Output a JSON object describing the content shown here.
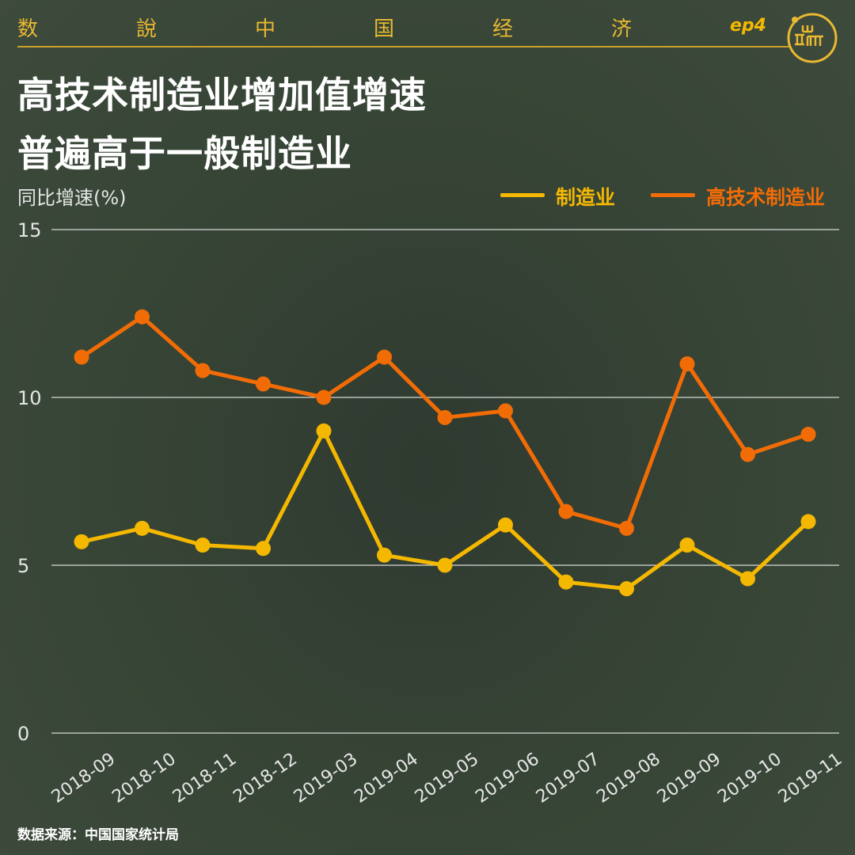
{
  "header": {
    "chars": [
      "数",
      "說",
      "中",
      "国",
      "经",
      "济"
    ],
    "episode": "ep4",
    "logo_text": "Ⅱ ш ㄇ"
  },
  "title": {
    "line1": "高技术制造业增加值增速",
    "line2": "普遍高于一般制造业"
  },
  "source": "数据来源：中国国家统计局",
  "colors": {
    "accent": "#e9b931",
    "manufacturing": "#f5b800",
    "high_tech": "#f26c06",
    "grid": "#d8d8d8"
  },
  "chart_data": {
    "type": "line",
    "title": "高技术制造业增加值增速普遍高于一般制造业",
    "ylabel": "同比增速(%)",
    "xlabel": "",
    "ylim": [
      0,
      15
    ],
    "yticks": [
      0,
      5,
      10,
      15
    ],
    "grid": true,
    "legend_position": "top-right",
    "categories": [
      "2018-09",
      "2018-10",
      "2018-11",
      "2018-12",
      "2019-03",
      "2019-04",
      "2019-05",
      "2019-06",
      "2019-07",
      "2019-08",
      "2019-09",
      "2019-10",
      "2019-11"
    ],
    "series": [
      {
        "name": "制造业",
        "color": "#f5b800",
        "values": [
          5.7,
          6.1,
          5.6,
          5.5,
          9.0,
          5.3,
          5.0,
          6.2,
          4.5,
          4.3,
          5.6,
          4.6,
          6.3
        ]
      },
      {
        "name": "高技术制造业",
        "color": "#f26c06",
        "values": [
          11.2,
          12.4,
          10.8,
          10.4,
          10.0,
          11.2,
          9.4,
          9.6,
          6.6,
          6.1,
          11.0,
          8.3,
          8.9
        ]
      }
    ]
  }
}
